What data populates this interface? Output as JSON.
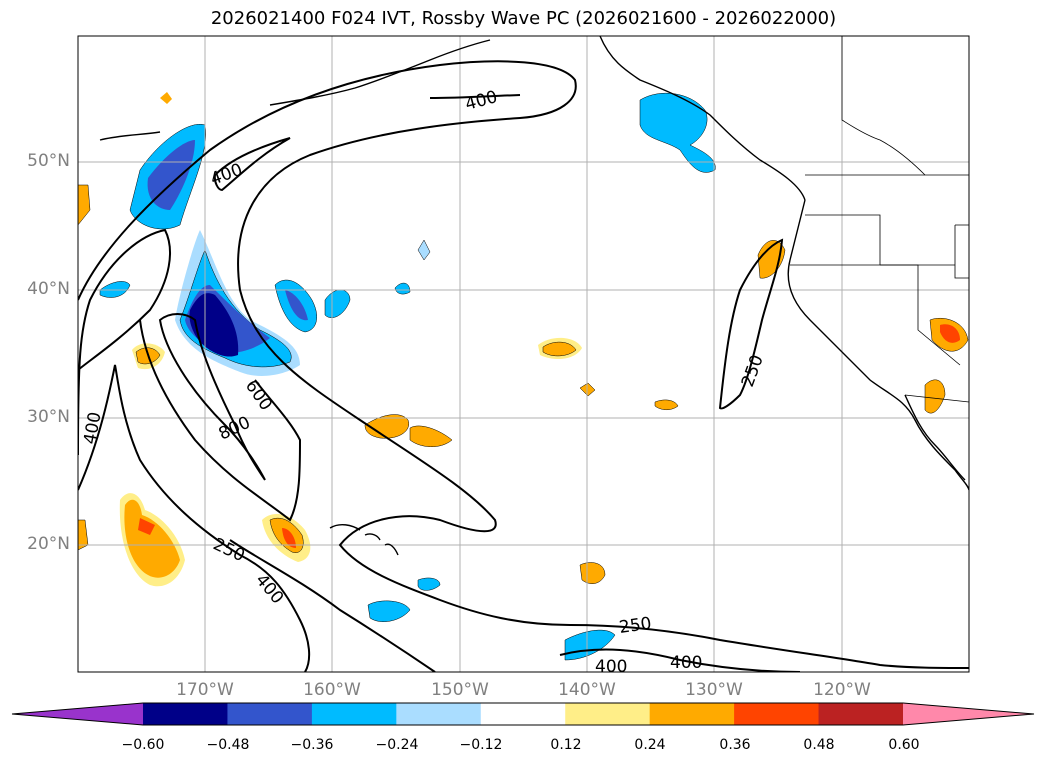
{
  "title": "2026021400 F024 IVT, Rossby Wave PC (2026021600 - 2026022000)",
  "map": {
    "lat_labels": [
      "50°N",
      "40°N",
      "30°N",
      "20°N"
    ],
    "lon_labels": [
      "170°W",
      "160°W",
      "150°W",
      "140°W",
      "130°W",
      "120°W"
    ],
    "contour_labels": [
      "400",
      "400",
      "400",
      "600",
      "800",
      "250",
      "400",
      "250",
      "250",
      "400",
      "400"
    ],
    "contour_color": "#000000",
    "gridlines": true
  },
  "colorbar": {
    "labels": [
      "−0.60",
      "−0.48",
      "−0.36",
      "−0.24",
      "−0.12",
      "0.12",
      "0.24",
      "0.36",
      "0.48",
      "0.60"
    ],
    "colors": [
      "#9933cc",
      "#000088",
      "#3355cc",
      "#00bbff",
      "#aaddff",
      "#ffffff",
      "#ffee88",
      "#ffaa00",
      "#ff4400",
      "#bb2222",
      "#ff88aa"
    ],
    "extend": "both"
  }
}
